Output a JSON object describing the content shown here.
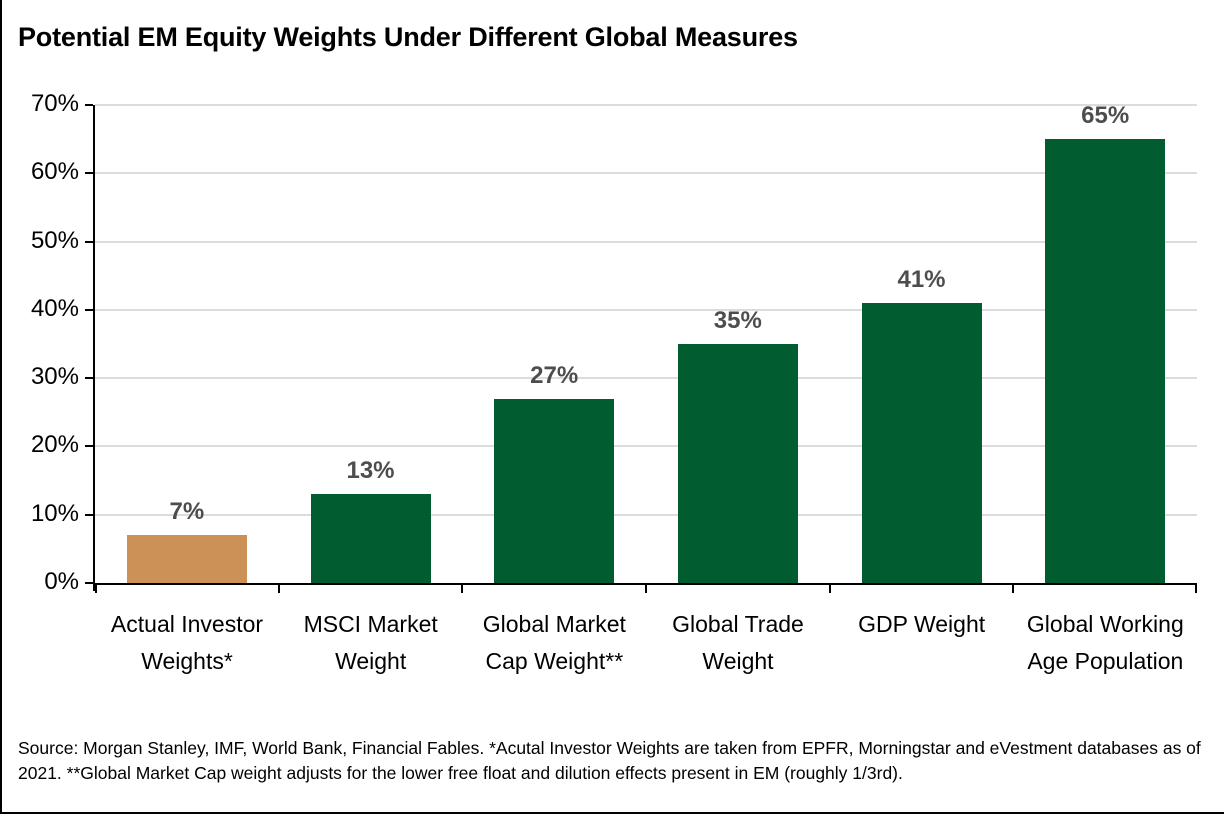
{
  "title": "Potential EM Equity Weights Under Different Global Measures",
  "source_note": "Source: Morgan Stanley, IMF, World Bank, Financial Fables. *Acutal Investor Weights are taken from EPFR, Morningstar and eVestment databases as of 2021. **Global Market Cap weight adjusts for the lower free float and dilution effects present in EM (roughly 1/3rd).",
  "colors": {
    "highlight_bar": "#CC9157",
    "default_bar": "#015C30",
    "value_label": "#4D4D4D",
    "gridline": "#DCDCDC",
    "axis": "#000000"
  },
  "chart_data": {
    "type": "bar",
    "title": "Potential EM Equity Weights Under Different Global Measures",
    "categories": [
      "Actual Investor Weights*",
      "MSCI Market Weight",
      "Global Market Cap Weight**",
      "Global Trade Weight",
      "GDP Weight",
      "Global Working Age Population"
    ],
    "values": [
      7,
      13,
      27,
      35,
      41,
      65
    ],
    "value_labels": [
      "7%",
      "13%",
      "27%",
      "35%",
      "41%",
      "65%"
    ],
    "bar_colors": [
      "#CC9157",
      "#015C30",
      "#015C30",
      "#015C30",
      "#015C30",
      "#015C30"
    ],
    "xlabel": "",
    "ylabel": "",
    "ylim": [
      0,
      70
    ],
    "ytick_labels": [
      "0%",
      "10%",
      "20%",
      "30%",
      "40%",
      "50%",
      "60%",
      "70%"
    ],
    "grid": true,
    "legend_position": "none"
  }
}
